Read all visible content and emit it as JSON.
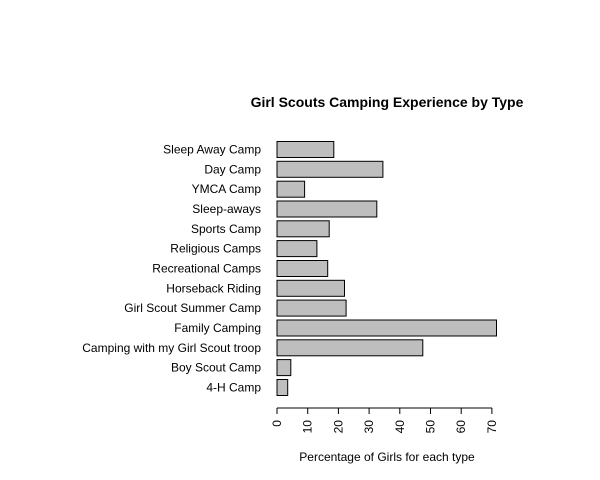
{
  "chart_data": {
    "type": "bar",
    "orientation": "horizontal",
    "title": "Girl Scouts Camping Experience by Type",
    "xlabel": "Percentage of Girls for each type",
    "ylabel": "",
    "xlim": [
      0,
      70
    ],
    "xticks": [
      0,
      10,
      20,
      30,
      40,
      50,
      60,
      70
    ],
    "categories": [
      "Sleep Away Camp",
      "Day Camp",
      "YMCA Camp",
      "Sleep-aways",
      "Sports Camp",
      "Religious Camps",
      "Recreational Camps",
      "Horseback Riding",
      "Girl Scout Summer Camp",
      "Family Camping",
      "Camping with my Girl Scout troop",
      "Boy Scout Camp",
      "4-H Camp"
    ],
    "values": [
      18.5,
      34.5,
      9,
      32.5,
      17,
      13,
      16.5,
      22,
      22.5,
      71.5,
      47.5,
      4.5,
      3.5
    ],
    "bar_color": "#bebebe",
    "grid": false,
    "legend": "none"
  }
}
